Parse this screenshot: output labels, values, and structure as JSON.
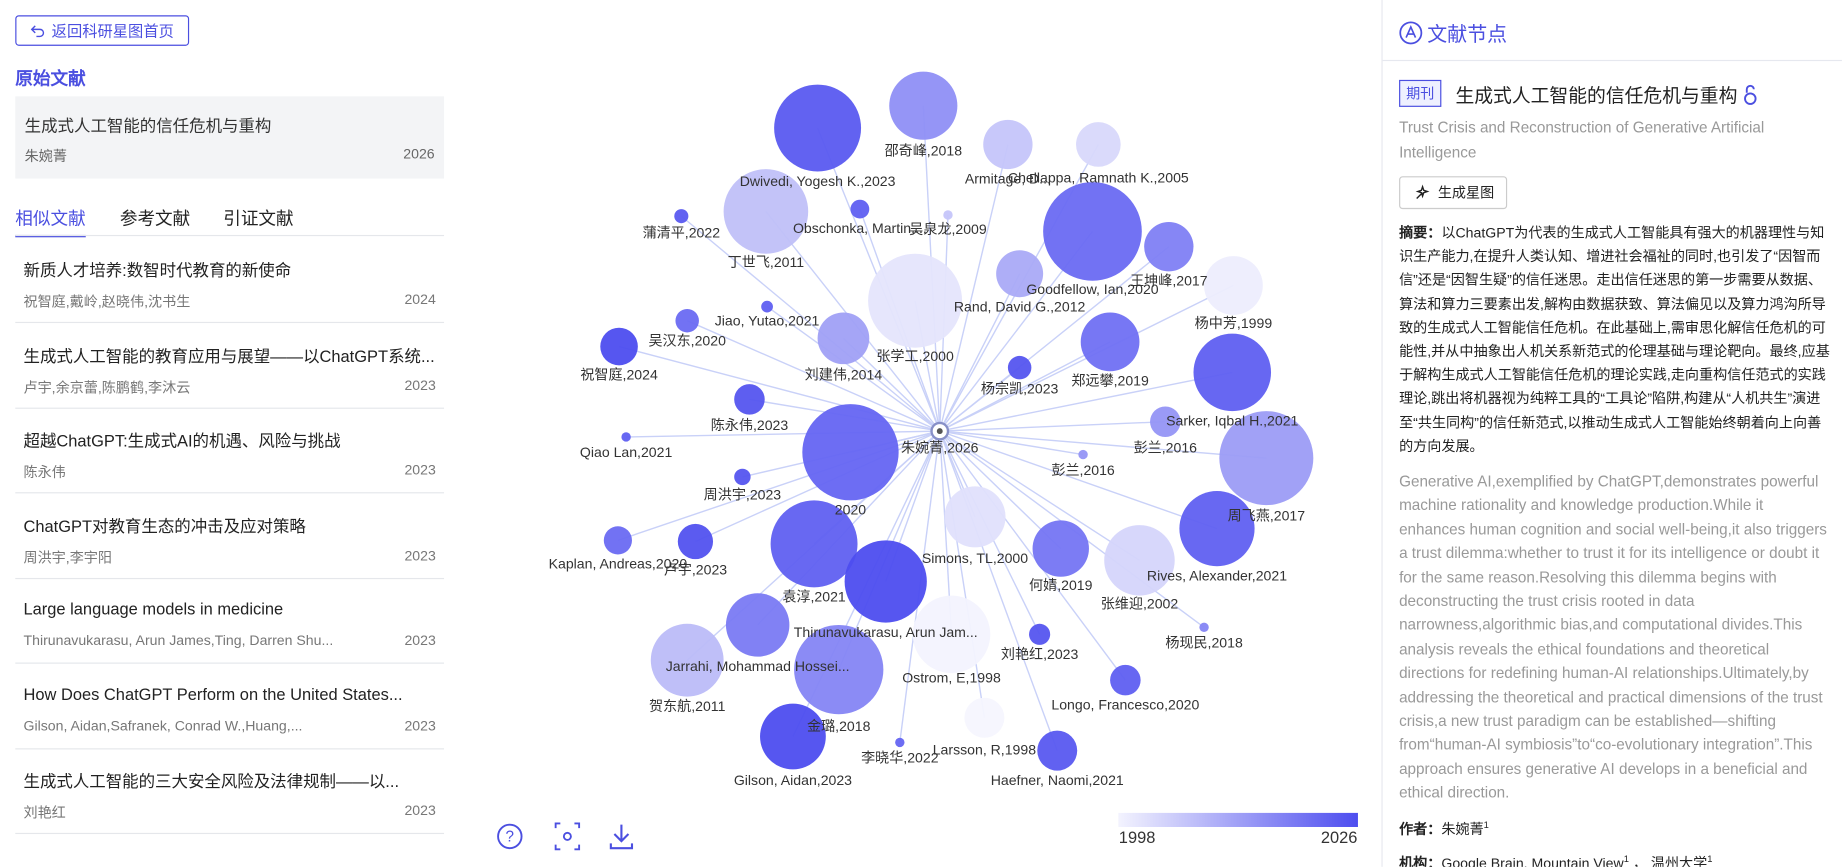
{
  "left": {
    "back_button": "返回科研星图首页",
    "section_title": "原始文献",
    "original": {
      "title": "生成式人工智能的信任危机与重构",
      "author": "朱婉菁",
      "year": 2026
    },
    "tabs": [
      "相似文献",
      "参考文献",
      "引证文献"
    ],
    "items": [
      {
        "title": "新质人才培养:数智时代教育的新使命",
        "authors": "祝智庭,戴岭,赵晓伟,沈书生",
        "year": 2024
      },
      {
        "title": "生成式人工智能的教育应用与展望——以ChatGPT系统...",
        "authors": "卢宇,余京蕾,陈鹏鹤,李沐云",
        "year": 2023
      },
      {
        "title": "超越ChatGPT:生成式AI的机遇、风险与挑战",
        "authors": "陈永伟",
        "year": 2023
      },
      {
        "title": "ChatGPT对教育生态的冲击及应对策略",
        "authors": "周洪宇,李宇阳",
        "year": 2023
      },
      {
        "title": "Large language models in medicine",
        "authors": "Thirunavukarasu, Arun James,Ting, Darren Shu...",
        "year": 2023
      },
      {
        "title": "How Does ChatGPT Perform on the United States...",
        "authors": "Gilson, Aidan,Safranek, Conrad W.,Huang,...",
        "year": 2023
      },
      {
        "title": "生成式人工智能的三大安全风险及法律规制——以...",
        "authors": "刘艳红",
        "year": 2023
      }
    ]
  },
  "graph": {
    "center": "朱婉菁,2026",
    "nodes": [
      "Dwivedi, Yogesh K.,2023",
      "邵奇峰,2018",
      "Armitage, D...",
      "Chellappa, Ramnath K.,2005",
      "蒲清平,2022",
      "丁世飞,2011",
      "Obschonka, Martin,...",
      "吴泉龙,2009",
      "Goodfellow, Ian,2020",
      "王坤峰,2017",
      "Rand, David G.,2012",
      "杨中芳,1999",
      "Jiao, Yutao,2021",
      "张学工,2000",
      "吴汉东,2020",
      "祝智庭,2024",
      "刘建伟,2014",
      "郑远攀,2019",
      "杨宗凯,2023",
      "Sarker, Iqbal H.,2021",
      "陈永伟,2023",
      "彭兰,2016",
      "Qiao Lan,2021",
      "2020",
      "彭兰,2016",
      "周洪宇,2023",
      "周飞燕,2017",
      "Rives, Alexander,2021",
      "张维迎,2002",
      "Simons, TL,2000",
      "Kaplan, Andreas,2020",
      "卢宇,2023",
      "袁淳,2021",
      "何婧,2019",
      "Thirunavukarasu, Arun Jam...",
      "Ostrom, E,1998",
      "杨现民,2018",
      "刘艳红,2023",
      "Jarrahi, Mohammad Hossei...",
      "贺东航,2011",
      "金璐,2018",
      "Longo, Francesco,2020",
      "Larsson, R,1998",
      "Gilson, Aidan,2023",
      "李晓华,2022",
      "Haefner, Naomi,2021"
    ],
    "legend": {
      "min": 1998,
      "max": 2026
    }
  },
  "right": {
    "header": "文献节点",
    "badge": "期刊",
    "title": "生成式人工智能的信任危机与重构",
    "title_en": "Trust Crisis and Reconstruction of Generative Artificial Intelligence",
    "button": "生成星图",
    "abstract_label": "摘要：",
    "abstract": "以ChatGPT为代表的生成式人工智能具有强大的机器理性与知识生产能力,在提升人类认知、增进社会福祉的同时,也引发了“因智而信”还是“因智生疑”的信任迷思。走出信任迷思的第一步需要从数据、算法和算力三要素出发,解构由数据获致、算法偏见以及算力鸿沟所导致的生成式人工智能信任危机。在此基础上,需审思化解信任危机的可能性,并从中抽象出人机关系新范式的伦理基础与理论靶向。最终,应基于解构生成式人工智能信任危机的理论实践,走向重构信任范式的实践理论,跳出将机器视为纯粹工具的“工具论”陷阱,构建从“人机共生”演进至“共生同构”的信任新范式,以推动生成式人工智能始终朝着向上向善的方向发展。",
    "abstract_en": "Generative AI,exemplified by ChatGPT,demonstrates powerful machine rationality and knowledge production.While it enhances human cognition and social well-being,it also triggers a trust dilemma:whether to trust it for its intelligence or doubt it for the same reason.Resolving this dilemma begins with deconstructing the trust crisis rooted in data narrowness,algorithmic bias,and computational divides.This analysis reveals the ethical foundations and theoretical directions for redefining human-AI relationships.Ultimately,by addressing the theoretical and practical dimensions of the trust crisis,a new trust paradigm can be established—shifting from“human-AI symbiosis”to“co-evolutionary integration”.This approach ensures generative AI develops in a beneficial and ethical direction.",
    "author_label": "作者：",
    "author": "朱婉菁",
    "author_sup": "1",
    "org_label": "机构：",
    "orgs": [
      {
        "name": "Google Brain, Mountain View",
        "sup": "1"
      },
      {
        "name": "温州大学",
        "sup": "1"
      }
    ]
  }
}
